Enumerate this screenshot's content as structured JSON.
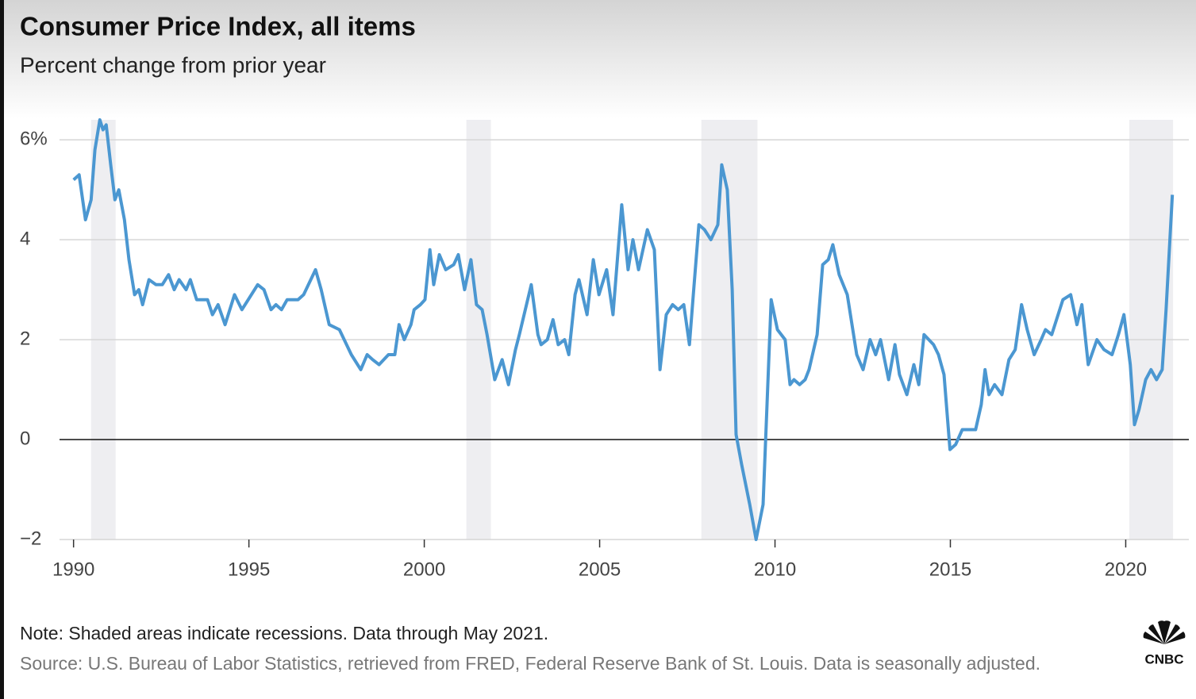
{
  "chart_data": {
    "type": "line",
    "title": "Consumer Price Index, all items",
    "subtitle": "Percent change from prior year",
    "note": "Note: Shaded areas indicate recessions. Data through May 2021.",
    "source": "Source: U.S. Bureau of Labor Statistics, retrieved from FRED, Federal Reserve Bank of St. Louis. Data is seasonally adjusted.",
    "logo": "CNBC",
    "color": "#4b97d1",
    "grid": true,
    "xlim": [
      1989.6,
      2021.8
    ],
    "ylim": [
      -2,
      6.4
    ],
    "xticks": [
      1990,
      1995,
      2000,
      2005,
      2010,
      2015,
      2020
    ],
    "yticks": [
      {
        "value": -2,
        "label": "−2"
      },
      0,
      2,
      4,
      {
        "value": 6,
        "label": "6%"
      }
    ],
    "recessions": [
      {
        "start": 1990.5,
        "end": 1991.2
      },
      {
        "start": 2001.2,
        "end": 2001.9
      },
      {
        "start": 2007.9,
        "end": 2009.5
      },
      {
        "start": 2020.1,
        "end": 2021.35
      }
    ],
    "x": [
      1990.0,
      1990.16,
      1990.34,
      1990.5,
      1990.61,
      1990.75,
      1990.84,
      1990.93,
      1991.06,
      1991.18,
      1991.29,
      1991.45,
      1991.58,
      1991.74,
      1991.86,
      1991.97,
      1992.15,
      1992.35,
      1992.53,
      1992.71,
      1992.87,
      1993.01,
      1993.21,
      1993.33,
      1993.51,
      1993.82,
      1993.96,
      1994.12,
      1994.32,
      1994.59,
      1994.8,
      1994.98,
      1995.25,
      1995.43,
      1995.63,
      1995.77,
      1995.93,
      1996.09,
      1996.4,
      1996.56,
      1996.9,
      1997.06,
      1997.29,
      1997.58,
      1997.92,
      1998.19,
      1998.37,
      1998.53,
      1998.71,
      1998.98,
      1999.16,
      1999.28,
      1999.43,
      1999.62,
      1999.71,
      1999.89,
      2000.02,
      2000.16,
      2000.27,
      2000.43,
      2000.61,
      2000.84,
      2000.97,
      2001.15,
      2001.33,
      2001.49,
      2001.65,
      2001.79,
      2002.01,
      2002.22,
      2002.4,
      2002.6,
      2002.71,
      2003.05,
      2003.24,
      2003.33,
      2003.51,
      2003.67,
      2003.82,
      2004.0,
      2004.12,
      2004.3,
      2004.41,
      2004.64,
      2004.82,
      2004.98,
      2005.2,
      2005.38,
      2005.63,
      2005.81,
      2005.95,
      2006.11,
      2006.36,
      2006.56,
      2006.72,
      2006.9,
      2007.08,
      2007.24,
      2007.4,
      2007.56,
      2007.67,
      2007.83,
      2007.99,
      2008.17,
      2008.37,
      2008.48,
      2008.64,
      2008.78,
      2008.89,
      2009.05,
      2009.28,
      2009.46,
      2009.66,
      2009.89,
      2010.07,
      2010.29,
      2010.43,
      2010.54,
      2010.7,
      2010.86,
      2010.97,
      2011.2,
      2011.36,
      2011.52,
      2011.65,
      2011.83,
      2012.06,
      2012.33,
      2012.51,
      2012.71,
      2012.87,
      2013.01,
      2013.24,
      2013.42,
      2013.55,
      2013.76,
      2013.96,
      2014.1,
      2014.25,
      2014.52,
      2014.66,
      2014.82,
      2014.99,
      2015.15,
      2015.34,
      2015.54,
      2015.72,
      2015.88,
      2015.99,
      2016.1,
      2016.26,
      2016.47,
      2016.67,
      2016.85,
      2017.03,
      2017.19,
      2017.39,
      2017.59,
      2017.71,
      2017.89,
      2018.21,
      2018.43,
      2018.61,
      2018.75,
      2018.93,
      2019.18,
      2019.38,
      2019.61,
      2019.79,
      2019.95,
      2020.13,
      2020.25,
      2020.38,
      2020.57,
      2020.72,
      2020.88,
      2021.04,
      2021.15,
      2021.33
    ],
    "values": [
      5.2,
      5.3,
      4.4,
      4.8,
      5.8,
      6.4,
      6.2,
      6.3,
      5.5,
      4.8,
      5.0,
      4.4,
      3.6,
      2.9,
      3.0,
      2.7,
      3.2,
      3.1,
      3.1,
      3.3,
      3.0,
      3.2,
      3.0,
      3.2,
      2.8,
      2.8,
      2.5,
      2.7,
      2.3,
      2.9,
      2.6,
      2.8,
      3.1,
      3.0,
      2.6,
      2.7,
      2.6,
      2.8,
      2.8,
      2.9,
      3.4,
      3.0,
      2.3,
      2.2,
      1.7,
      1.4,
      1.7,
      1.6,
      1.5,
      1.7,
      1.7,
      2.3,
      2.0,
      2.3,
      2.6,
      2.7,
      2.8,
      3.8,
      3.1,
      3.7,
      3.4,
      3.5,
      3.7,
      3.0,
      3.6,
      2.7,
      2.6,
      2.1,
      1.2,
      1.6,
      1.1,
      1.8,
      2.1,
      3.1,
      2.1,
      1.9,
      2.0,
      2.4,
      1.9,
      2.0,
      1.7,
      2.9,
      3.2,
      2.5,
      3.6,
      2.9,
      3.4,
      2.5,
      4.7,
      3.4,
      4.0,
      3.4,
      4.2,
      3.8,
      1.4,
      2.5,
      2.7,
      2.6,
      2.7,
      1.9,
      2.9,
      4.3,
      4.2,
      4.0,
      4.3,
      5.5,
      5.0,
      3.0,
      0.1,
      -0.5,
      -1.3,
      -2.0,
      -1.3,
      2.8,
      2.2,
      2.0,
      1.1,
      1.2,
      1.1,
      1.2,
      1.4,
      2.1,
      3.5,
      3.6,
      3.9,
      3.3,
      2.9,
      1.7,
      1.4,
      2.0,
      1.7,
      2.0,
      1.2,
      1.9,
      1.3,
      0.9,
      1.5,
      1.1,
      2.1,
      1.9,
      1.7,
      1.3,
      -0.2,
      -0.1,
      0.2,
      0.2,
      0.2,
      0.7,
      1.4,
      0.9,
      1.1,
      0.9,
      1.6,
      1.8,
      2.7,
      2.2,
      1.7,
      2.0,
      2.2,
      2.1,
      2.8,
      2.9,
      2.3,
      2.7,
      1.5,
      2.0,
      1.8,
      1.7,
      2.1,
      2.5,
      1.5,
      0.3,
      0.6,
      1.2,
      1.4,
      1.2,
      1.4,
      2.6,
      4.9
    ]
  }
}
